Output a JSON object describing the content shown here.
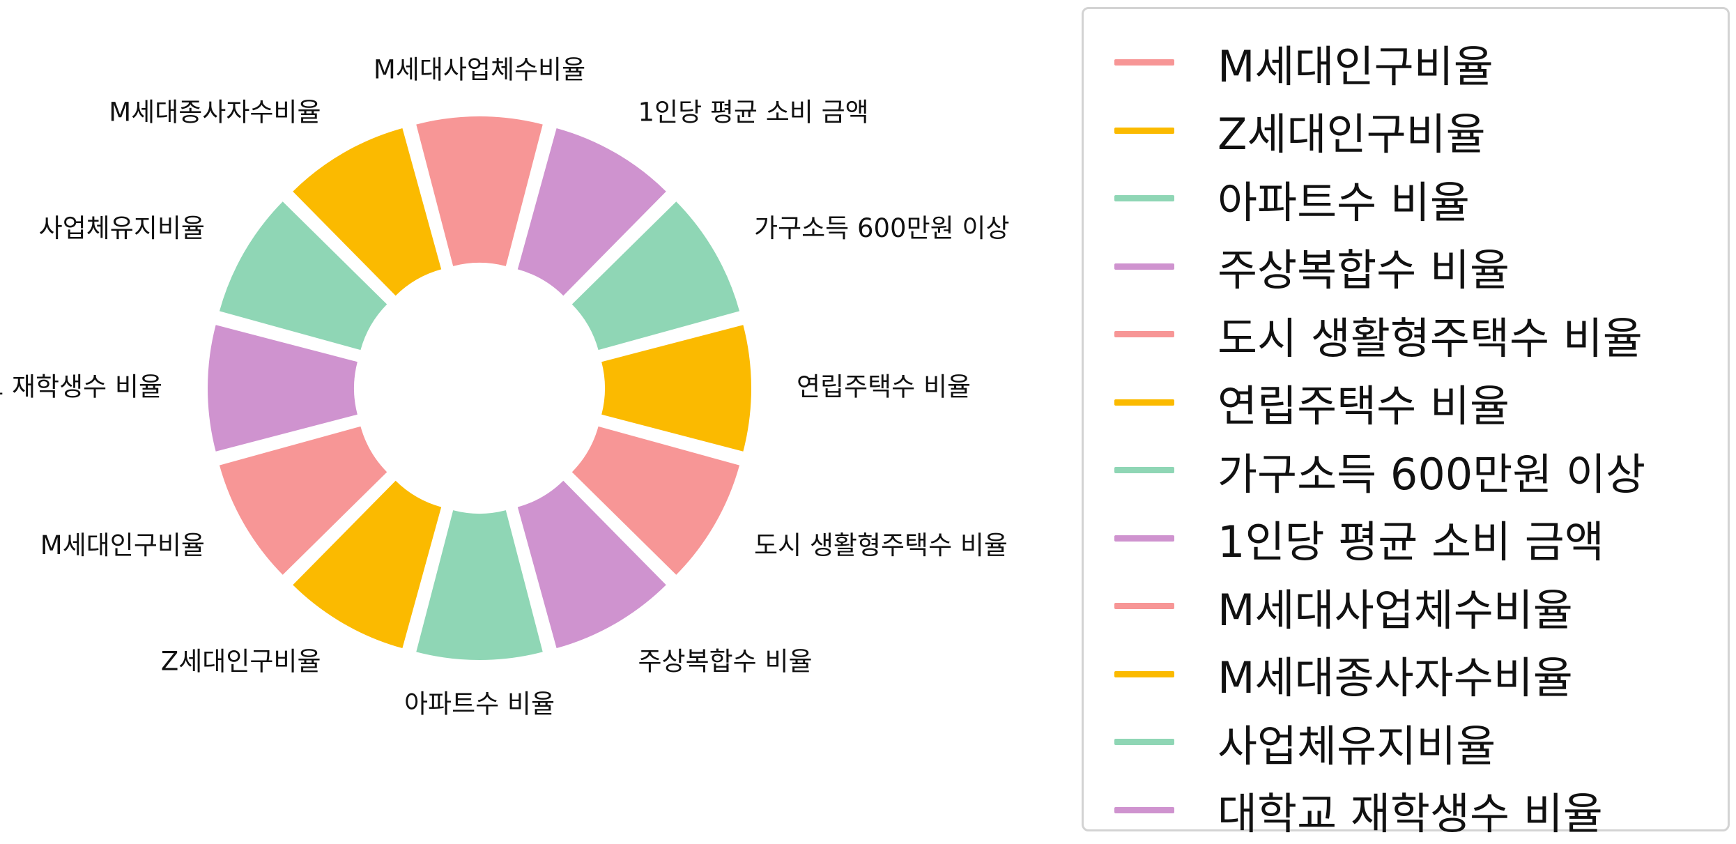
{
  "chart_data": {
    "type": "pie",
    "subtype": "donut",
    "categories": [
      "M세대인구비율",
      "Z세대인구비율",
      "아파트수 비율",
      "주상복합수 비율",
      "도시 생활형주택수 비율",
      "연립주택수 비율",
      "가구소득 600만원 이상",
      "1인당 평균 소비 금액",
      "M세대사업체수비율",
      "M세대종사자수비율",
      "사업체유지비율",
      "대학교 재학생수 비율"
    ],
    "values": [
      1,
      1,
      1,
      1,
      1,
      1,
      1,
      1,
      1,
      1,
      1,
      1
    ],
    "colors": [
      "#f79696",
      "#fbba00",
      "#8fd6b5",
      "#cf93cf",
      "#f79696",
      "#fbba00",
      "#8fd6b5",
      "#cf93cf",
      "#f79696",
      "#fbba00",
      "#8fd6b5",
      "#cf93cf"
    ],
    "title": "",
    "legend_position": "right",
    "legend_labels": [
      "M세대인구비율",
      "Z세대인구비율",
      "아파트수 비율",
      "주상복합수 비율",
      "도시 생활형주택수 비율",
      "연립주택수 비율",
      "가구소득 600만원 이상",
      "1인당 평균 소비 금액",
      "M세대사업체수비율",
      "M세대종사자수비율",
      "사업체유지비율",
      "대학교 재학생수 비율"
    ]
  }
}
